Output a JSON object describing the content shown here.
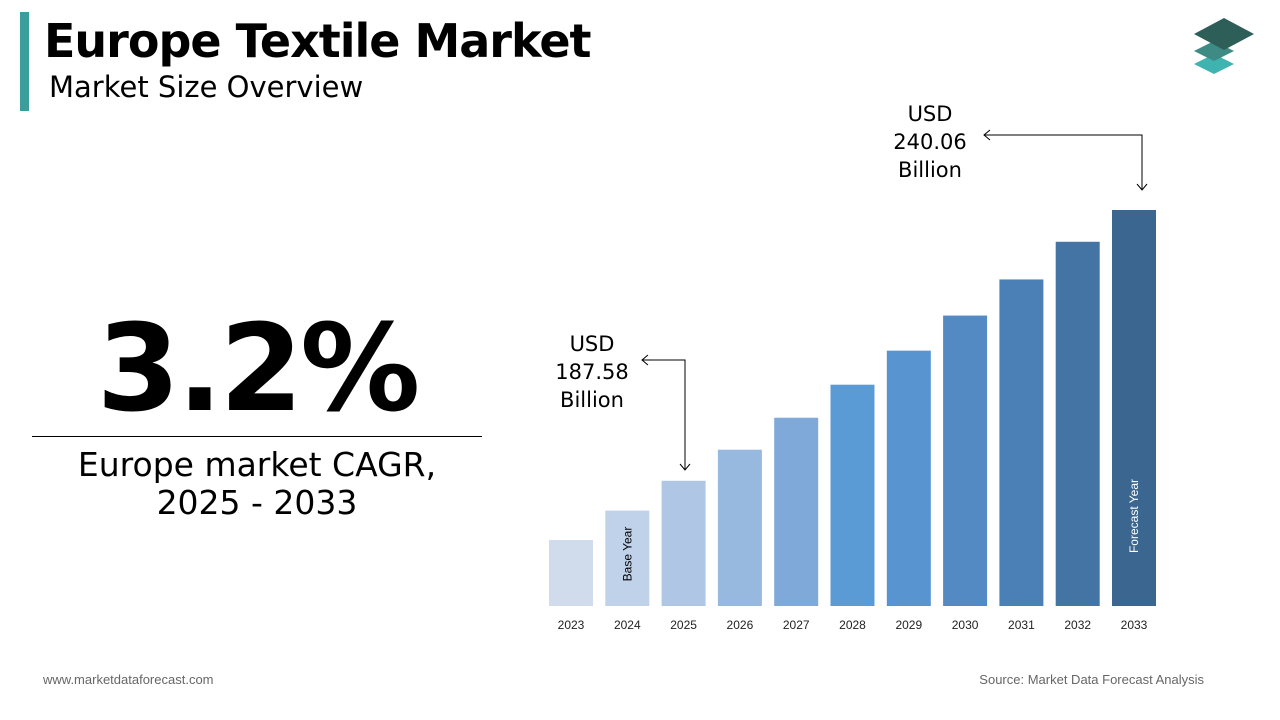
{
  "header": {
    "title": "Europe Textile Market",
    "subtitle": "Market Size Overview"
  },
  "logo": {
    "icon": "stacked-layers-icon",
    "colors": [
      "#2e5e58",
      "#3e8a84",
      "#3fb3b0"
    ]
  },
  "kpi": {
    "value": "3.2%",
    "label_line1": "Europe market CAGR,",
    "label_line2": "2025 - 2033"
  },
  "annotations": {
    "start": {
      "line1": "USD",
      "line2": "187.58",
      "line3": "Billion",
      "year": "2025"
    },
    "end": {
      "line1": "USD",
      "line2": "240.06",
      "line3": "Billion",
      "year": "2033"
    }
  },
  "chart_data": {
    "type": "bar",
    "categories": [
      "2023",
      "2024",
      "2025",
      "2026",
      "2027",
      "2028",
      "2029",
      "2030",
      "2031",
      "2032",
      "2033"
    ],
    "values": [
      176.1,
      181.8,
      187.58,
      193.6,
      199.8,
      206.2,
      212.8,
      219.6,
      226.6,
      233.9,
      240.06
    ],
    "unit": "USD Billion",
    "colors": [
      "#d0dcec",
      "#c0d1ea",
      "#afc7e5",
      "#98b9df",
      "#7fa9d9",
      "#5b9bd5",
      "#5895d0",
      "#538ac3",
      "#4a80b5",
      "#4374a3",
      "#3b6690"
    ],
    "bar_labels": {
      "2024": "Base Year",
      "2033": "Forecast Year"
    },
    "grid": false,
    "legend": "none"
  },
  "footer": {
    "website": "www.marketdataforecast.com",
    "source": "Source: Market Data Forecast Analysis"
  }
}
